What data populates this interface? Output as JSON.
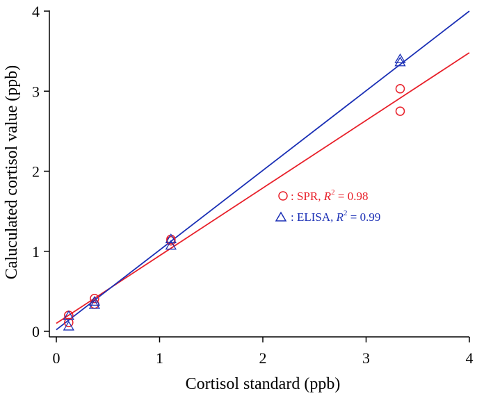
{
  "chart_data": {
    "type": "scatter",
    "title": "",
    "xlabel": "Cortisol standard (ppb)",
    "ylabel": "Caluculated cortisol value (ppb)",
    "xlim": [
      0,
      4
    ],
    "ylim": [
      0,
      4
    ],
    "xticks": [
      "0",
      "1",
      "2",
      "3",
      "4"
    ],
    "yticks": [
      "0",
      "1",
      "2",
      "3",
      "4"
    ],
    "grid": false,
    "legend_position": "center-right",
    "series": [
      {
        "name": "SPR",
        "marker": "circle",
        "color": "#e8202a",
        "r2_text": "= 0.98",
        "x": [
          0.12,
          0.12,
          0.37,
          0.37,
          1.11,
          1.11,
          3.33,
          3.33
        ],
        "y": [
          0.2,
          0.11,
          0.41,
          0.34,
          1.15,
          1.13,
          3.03,
          2.75
        ],
        "fit_line": {
          "x": [
            0,
            4
          ],
          "y": [
            0.1,
            3.48
          ]
        }
      },
      {
        "name": "ELISA",
        "marker": "triangle",
        "color": "#1a2fb5",
        "r2_text": "= 0.99",
        "x": [
          0.12,
          0.12,
          0.37,
          0.37,
          1.11,
          1.11,
          3.33,
          3.33
        ],
        "y": [
          0.19,
          0.06,
          0.37,
          0.33,
          1.15,
          1.07,
          3.4,
          3.36
        ],
        "fit_line": {
          "x": [
            0,
            4
          ],
          "y": [
            0.02,
            4.0
          ]
        }
      }
    ],
    "legend": [
      {
        "series": "SPR",
        "prefix": ": SPR, ",
        "r_label": "R",
        "sup": "2",
        "suffix": " = 0.98"
      },
      {
        "series": "ELISA",
        "prefix": ": ELISA, ",
        "r_label": "R",
        "sup": "2",
        "suffix": " = 0.99"
      }
    ]
  }
}
